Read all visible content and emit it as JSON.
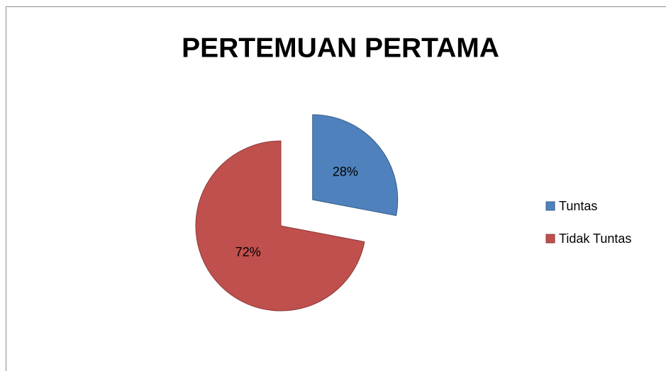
{
  "chart_data": {
    "type": "pie",
    "title": "PERTEMUAN PERTAMA",
    "categories": [
      "Tuntas",
      "Tidak Tuntas"
    ],
    "values": [
      28,
      72
    ],
    "value_labels": [
      "28%",
      "72%"
    ],
    "colors": [
      "#4f81bd",
      "#c0504d"
    ],
    "legend": "right"
  }
}
